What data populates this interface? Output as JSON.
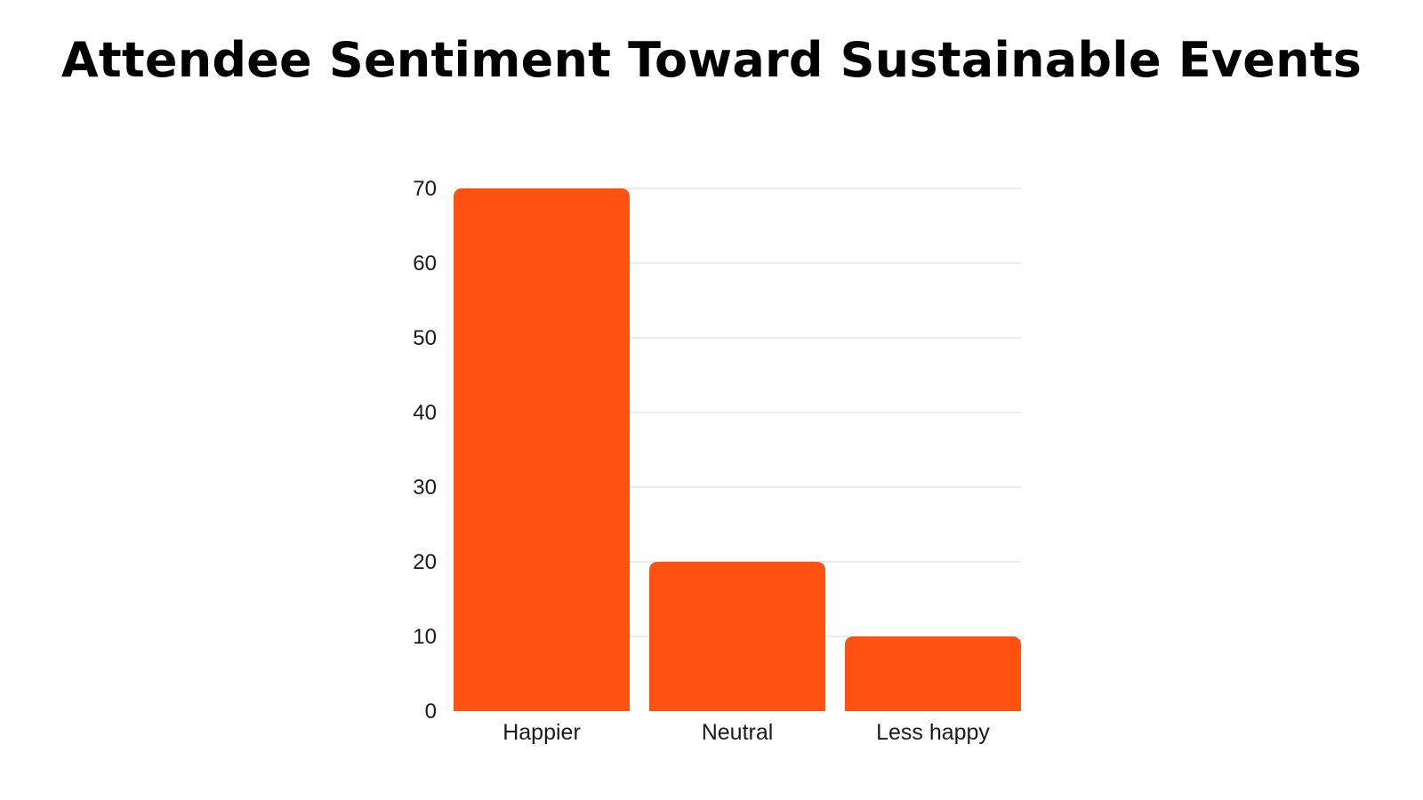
{
  "chart_data": {
    "type": "bar",
    "title": "Attendee Sentiment Toward Sustainable Events",
    "categories": [
      "Happier",
      "Neutral",
      "Less happy"
    ],
    "values": [
      70,
      20,
      10
    ],
    "xlabel": "",
    "ylabel": "",
    "ylim": [
      0,
      70
    ],
    "yticks": [
      0,
      10,
      20,
      30,
      40,
      50,
      60,
      70
    ],
    "grid": true,
    "legend": "none",
    "bar_color": "#FF510F",
    "grid_color": "#d9d9d9"
  }
}
